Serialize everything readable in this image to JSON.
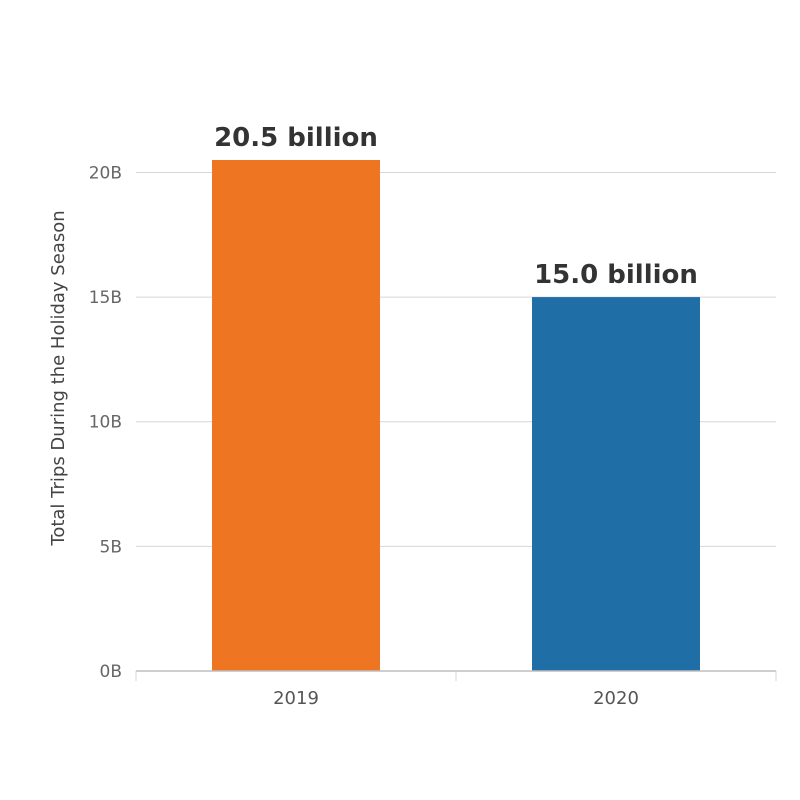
{
  "chart_data": {
    "type": "bar",
    "title": "",
    "xlabel": "",
    "ylabel": "Total Trips During the Holiday Season",
    "categories": [
      "2019",
      "2020"
    ],
    "values": [
      20.5,
      15.0
    ],
    "data_labels": [
      "20.5 billion",
      "15.0 billion"
    ],
    "bar_colors": [
      "#ee7623",
      "#1f6ea6"
    ],
    "ylim": [
      0,
      20.5
    ],
    "y_ticks": [
      {
        "value": 0,
        "label": "0B"
      },
      {
        "value": 5,
        "label": "5B"
      },
      {
        "value": 10,
        "label": "10B"
      },
      {
        "value": 15,
        "label": "15B"
      },
      {
        "value": 20,
        "label": "20B"
      }
    ],
    "grid": true,
    "legend": "none"
  }
}
